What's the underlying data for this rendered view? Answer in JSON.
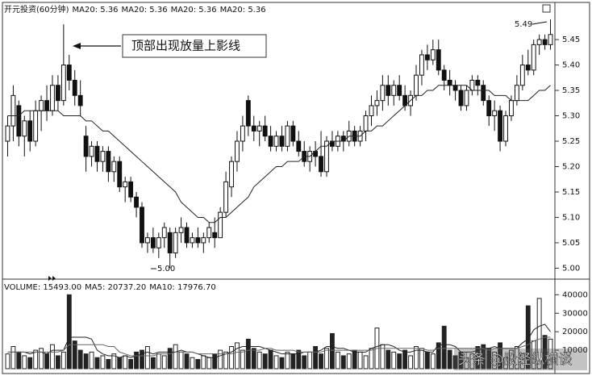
{
  "chart_data": [
    {
      "type": "candlestick",
      "title": "开元投资(60分钟)",
      "indicators": [
        "MA20: 5.36",
        "MA20: 5.36",
        "MA20: 5.36",
        "MA20: 5.36"
      ],
      "open": [
        5.25,
        5.28,
        5.32,
        5.26,
        5.29,
        5.25,
        5.31,
        5.33,
        5.31,
        5.36,
        5.33,
        5.4,
        5.37,
        5.34,
        5.26,
        5.22,
        5.24,
        5.21,
        5.23,
        5.19,
        5.21,
        5.16,
        5.17,
        5.14,
        5.12,
        5.05,
        5.06,
        5.04,
        5.06,
        5.07,
        5.03,
        5.07,
        5.08,
        5.05,
        5.06,
        5.05,
        5.06,
        5.07,
        5.06,
        5.11,
        5.16,
        5.21,
        5.25,
        5.33,
        5.28,
        5.27,
        5.28,
        5.26,
        5.24,
        5.26,
        5.24,
        5.28,
        5.25,
        5.23,
        5.21,
        5.23,
        5.22,
        5.19,
        5.25,
        5.24,
        5.26,
        5.25,
        5.27,
        5.25,
        5.27,
        5.3,
        5.32,
        5.33,
        5.36,
        5.34,
        5.36,
        5.34,
        5.32,
        5.34,
        5.38,
        5.42,
        5.41,
        5.43,
        5.39,
        5.37,
        5.36,
        5.35,
        5.32,
        5.35,
        5.37,
        5.36,
        5.33,
        5.3,
        5.31,
        5.25,
        5.3,
        5.33,
        5.36,
        5.4,
        5.39,
        5.44,
        5.45,
        5.44
      ],
      "high": [
        5.3,
        5.36,
        5.33,
        5.3,
        5.31,
        5.33,
        5.34,
        5.36,
        5.38,
        5.38,
        5.48,
        5.42,
        5.39,
        5.37,
        5.28,
        5.25,
        5.25,
        5.24,
        5.24,
        5.22,
        5.22,
        5.18,
        5.18,
        5.15,
        5.13,
        5.07,
        5.08,
        5.07,
        5.09,
        5.08,
        5.08,
        5.1,
        5.09,
        5.07,
        5.08,
        5.07,
        5.09,
        5.1,
        5.12,
        5.19,
        5.22,
        5.27,
        5.3,
        5.34,
        5.3,
        5.29,
        5.3,
        5.28,
        5.27,
        5.28,
        5.29,
        5.29,
        5.27,
        5.25,
        5.24,
        5.25,
        5.27,
        5.26,
        5.27,
        5.27,
        5.27,
        5.29,
        5.28,
        5.28,
        5.31,
        5.34,
        5.35,
        5.38,
        5.38,
        5.37,
        5.38,
        5.36,
        5.35,
        5.4,
        5.43,
        5.44,
        5.45,
        5.45,
        5.4,
        5.39,
        5.37,
        5.36,
        5.36,
        5.38,
        5.38,
        5.37,
        5.34,
        5.33,
        5.32,
        5.31,
        5.34,
        5.38,
        5.42,
        5.43,
        5.45,
        5.46,
        5.46,
        5.49
      ],
      "low": [
        5.22,
        5.25,
        5.24,
        5.22,
        5.23,
        5.24,
        5.27,
        5.29,
        5.3,
        5.31,
        5.32,
        5.35,
        5.32,
        5.3,
        5.19,
        5.2,
        5.19,
        5.19,
        5.17,
        5.17,
        5.15,
        5.13,
        5.13,
        5.1,
        5.04,
        5.03,
        5.03,
        5.02,
        5.04,
        5.0,
        5.02,
        5.05,
        5.04,
        5.04,
        5.04,
        5.03,
        5.05,
        5.04,
        5.06,
        5.1,
        5.14,
        5.19,
        5.23,
        5.26,
        5.25,
        5.24,
        5.25,
        5.23,
        5.23,
        5.23,
        5.23,
        5.24,
        5.22,
        5.2,
        5.19,
        5.2,
        5.18,
        5.18,
        5.23,
        5.23,
        5.23,
        5.24,
        5.24,
        5.24,
        5.25,
        5.28,
        5.3,
        5.31,
        5.32,
        5.32,
        5.33,
        5.31,
        5.3,
        5.33,
        5.36,
        5.39,
        5.4,
        5.38,
        5.35,
        5.34,
        5.33,
        5.31,
        5.31,
        5.34,
        5.34,
        5.32,
        5.28,
        5.27,
        5.23,
        5.24,
        5.29,
        5.32,
        5.35,
        5.38,
        5.38,
        5.42,
        5.43,
        5.43
      ],
      "close": [
        5.28,
        5.34,
        5.26,
        5.29,
        5.25,
        5.31,
        5.33,
        5.31,
        5.36,
        5.33,
        5.4,
        5.37,
        5.34,
        5.32,
        5.22,
        5.24,
        5.21,
        5.23,
        5.19,
        5.21,
        5.16,
        5.17,
        5.14,
        5.12,
        5.05,
        5.06,
        5.04,
        5.06,
        5.08,
        5.03,
        5.07,
        5.08,
        5.05,
        5.06,
        5.05,
        5.06,
        5.08,
        5.06,
        5.11,
        5.17,
        5.21,
        5.25,
        5.28,
        5.28,
        5.27,
        5.28,
        5.26,
        5.24,
        5.26,
        5.24,
        5.28,
        5.25,
        5.23,
        5.21,
        5.23,
        5.22,
        5.19,
        5.25,
        5.24,
        5.26,
        5.25,
        5.27,
        5.25,
        5.27,
        5.3,
        5.32,
        5.33,
        5.36,
        5.34,
        5.36,
        5.34,
        5.32,
        5.34,
        5.38,
        5.42,
        5.41,
        5.43,
        5.39,
        5.37,
        5.36,
        5.35,
        5.32,
        5.35,
        5.37,
        5.36,
        5.33,
        5.3,
        5.31,
        5.25,
        5.3,
        5.33,
        5.36,
        5.4,
        5.39,
        5.44,
        5.45,
        5.44,
        5.46
      ],
      "ma": [
        5.3,
        5.3,
        5.3,
        5.31,
        5.31,
        5.31,
        5.31,
        5.31,
        5.31,
        5.31,
        5.3,
        5.3,
        5.3,
        5.3,
        5.29,
        5.29,
        5.28,
        5.27,
        5.27,
        5.26,
        5.25,
        5.24,
        5.23,
        5.22,
        5.21,
        5.2,
        5.19,
        5.18,
        5.17,
        5.16,
        5.15,
        5.13,
        5.12,
        5.11,
        5.1,
        5.1,
        5.09,
        5.09,
        5.1,
        5.1,
        5.11,
        5.12,
        5.13,
        5.14,
        5.16,
        5.17,
        5.18,
        5.19,
        5.2,
        5.2,
        5.21,
        5.21,
        5.21,
        5.22,
        5.22,
        5.23,
        5.24,
        5.24,
        5.25,
        5.25,
        5.25,
        5.26,
        5.26,
        5.26,
        5.27,
        5.27,
        5.28,
        5.28,
        5.29,
        5.3,
        5.31,
        5.32,
        5.33,
        5.34,
        5.34,
        5.35,
        5.35,
        5.36,
        5.36,
        5.36,
        5.36,
        5.36,
        5.36,
        5.35,
        5.35,
        5.35,
        5.35,
        5.34,
        5.34,
        5.34,
        5.33,
        5.33,
        5.33,
        5.33,
        5.34,
        5.35,
        5.35,
        5.36
      ],
      "ylim": [
        4.98,
        5.52
      ],
      "yticks": [
        {
          "value": 5,
          "label": "5.00"
        },
        5.05,
        {
          "value": 5.1,
          "label": "5.10"
        },
        5.15,
        {
          "value": 5.2,
          "label": "5.20"
        },
        5.25,
        {
          "value": 5.3,
          "label": "5.30"
        },
        5.35,
        {
          "value": 5.4,
          "label": "5.40"
        },
        5.45
      ],
      "annotations": [
        {
          "text": "顶部出现放量上影线"
        },
        {
          "text": "5.49"
        },
        {
          "text": "5.00"
        }
      ],
      "watermark": "头条 @股经纵横谈"
    },
    {
      "type": "bar",
      "title": "VOLUME: 15493.00",
      "indicators": [
        "MA5: 20737.20",
        "MA10: 17976.70"
      ],
      "values": [
        8000,
        12000,
        9000,
        7000,
        6000,
        10000,
        11000,
        8000,
        13000,
        7000,
        9000,
        40000,
        15000,
        10000,
        8000,
        9000,
        6000,
        7000,
        5000,
        8000,
        6000,
        7000,
        5000,
        9000,
        10000,
        12000,
        6000,
        8000,
        7000,
        11000,
        13000,
        9000,
        8000,
        6000,
        5000,
        7000,
        6000,
        8000,
        10000,
        9000,
        12000,
        14000,
        10000,
        16000,
        11000,
        9000,
        8000,
        10000,
        7000,
        6000,
        9000,
        8000,
        10000,
        7000,
        9000,
        12000,
        8000,
        11000,
        19000,
        9000,
        7000,
        8000,
        10000,
        9000,
        7000,
        11000,
        22000,
        13000,
        10000,
        9000,
        8000,
        10000,
        7000,
        12000,
        11000,
        9000,
        8000,
        14000,
        23000,
        10000,
        7000,
        9000,
        6000,
        8000,
        12000,
        13000,
        11000,
        9000,
        14000,
        6000,
        10000,
        12000,
        8000,
        34000,
        15000,
        38000,
        18000,
        16000
      ],
      "series": [
        {
          "name": "MA5",
          "color": "#222",
          "values": [
            9000,
            9000,
            9000,
            9000,
            8000,
            9000,
            9000,
            8000,
            10000,
            10000,
            10000,
            17000,
            17000,
            17000,
            17000,
            16000,
            10000,
            8000,
            7000,
            7000,
            6000,
            7000,
            6000,
            7000,
            8000,
            9000,
            8000,
            9000,
            9000,
            9000,
            9000,
            10000,
            9000,
            9000,
            8000,
            7000,
            6000,
            6000,
            7000,
            8000,
            9000,
            11000,
            12000,
            12000,
            12000,
            12000,
            11000,
            10000,
            9000,
            8000,
            8000,
            8000,
            8000,
            9000,
            9000,
            9000,
            10000,
            12000,
            12000,
            11000,
            11000,
            10000,
            9000,
            9000,
            9000,
            11000,
            12000,
            13000,
            13000,
            12000,
            10000,
            9000,
            9000,
            10000,
            10000,
            9000,
            9000,
            13000,
            13000,
            13000,
            12000,
            9000,
            9000,
            9000,
            10000,
            11000,
            11000,
            12000,
            11000,
            11000,
            11000,
            11000,
            14000,
            16000,
            21000,
            23000,
            24000,
            20000
          ]
        },
        {
          "name": "MA10",
          "color": "#666",
          "values": [
            9000,
            9000,
            9000,
            9000,
            9000,
            9000,
            9000,
            9000,
            9000,
            9000,
            10000,
            13000,
            13000,
            13000,
            13000,
            13000,
            13000,
            13000,
            12000,
            12000,
            9000,
            8000,
            7000,
            7000,
            7000,
            7000,
            7000,
            8000,
            8000,
            8000,
            9000,
            9000,
            9000,
            9000,
            8000,
            8000,
            8000,
            8000,
            8000,
            8000,
            8000,
            9000,
            9000,
            10000,
            10000,
            10000,
            11000,
            11000,
            10000,
            10000,
            10000,
            10000,
            9000,
            9000,
            9000,
            9000,
            9000,
            10000,
            10000,
            10000,
            10000,
            10000,
            10000,
            10000,
            10000,
            10000,
            11000,
            11000,
            11000,
            11000,
            11000,
            11000,
            11000,
            11000,
            11000,
            10000,
            10000,
            11000,
            11000,
            11000,
            11000,
            11000,
            11000,
            11000,
            11000,
            11000,
            10000,
            11000,
            11000,
            11000,
            11000,
            11000,
            12000,
            13000,
            15000,
            16000,
            17000,
            17000
          ]
        }
      ],
      "ylim": [
        0,
        48000
      ],
      "yticks": [
        10000,
        20000,
        30000,
        40000
      ]
    }
  ]
}
